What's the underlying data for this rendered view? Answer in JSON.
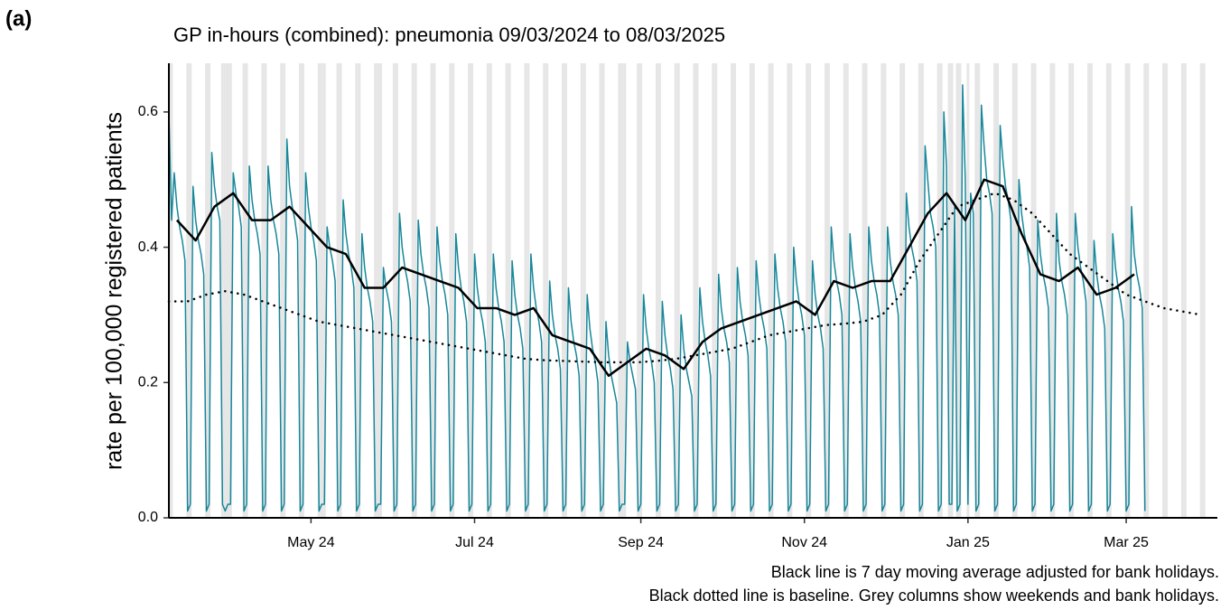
{
  "chart_data": {
    "type": "line",
    "panel_label": "(a)",
    "title": "GP in-hours (combined): pneumonia 09/03/2024 to 08/03/2025",
    "y_label": "rate per 100,000 registered patients",
    "notes": [
      "Black line is 7 day moving average adjusted for bank holidays.",
      "Black dotted line is baseline. Grey columns show weekends and bank holidays."
    ],
    "xlim": [
      0,
      391
    ],
    "ylim": [
      0,
      0.672
    ],
    "xticks": [
      {
        "value": 53,
        "label": "May 24"
      },
      {
        "value": 114,
        "label": "Jul 24"
      },
      {
        "value": 176,
        "label": "Sep 24"
      },
      {
        "value": 237,
        "label": "Nov 24"
      },
      {
        "value": 298,
        "label": "Jan 25"
      },
      {
        "value": 357,
        "label": "Mar 25"
      }
    ],
    "yticks": [
      {
        "value": 0,
        "label": "0.0"
      },
      0.2,
      0.4,
      0.6
    ],
    "shade_color": "#e6e6e6",
    "shaded_days": [
      0,
      1,
      7,
      8,
      14,
      15,
      20,
      21,
      22,
      23,
      28,
      29,
      35,
      36,
      42,
      43,
      49,
      50,
      56,
      57,
      58,
      63,
      64,
      70,
      71,
      77,
      78,
      79,
      84,
      85,
      91,
      92,
      98,
      99,
      105,
      106,
      112,
      113,
      119,
      120,
      126,
      127,
      133,
      134,
      140,
      141,
      147,
      148,
      154,
      155,
      161,
      162,
      168,
      169,
      170,
      175,
      176,
      182,
      183,
      189,
      190,
      196,
      197,
      203,
      204,
      210,
      211,
      217,
      218,
      224,
      225,
      231,
      232,
      238,
      239,
      245,
      246,
      252,
      253,
      259,
      260,
      266,
      267,
      273,
      274,
      280,
      281,
      287,
      288,
      291,
      292,
      294,
      295,
      298,
      301,
      302,
      308,
      309,
      315,
      316,
      322,
      323,
      329,
      330,
      336,
      337,
      343,
      344,
      350,
      351,
      357,
      358,
      364,
      365,
      371,
      372,
      378,
      379,
      385,
      386
    ],
    "x": [
      0,
      1,
      2,
      3,
      4,
      5,
      6,
      7,
      8,
      9,
      10,
      11,
      12,
      13,
      14,
      15,
      16,
      17,
      18,
      19,
      20,
      21,
      22,
      23,
      24,
      25,
      26,
      27,
      28,
      29,
      30,
      31,
      32,
      33,
      34,
      35,
      36,
      37,
      38,
      39,
      40,
      41,
      42,
      43,
      44,
      45,
      46,
      47,
      48,
      49,
      50,
      51,
      52,
      53,
      54,
      55,
      56,
      57,
      58,
      59,
      60,
      61,
      62,
      63,
      64,
      65,
      66,
      67,
      68,
      69,
      70,
      71,
      72,
      73,
      74,
      75,
      76,
      77,
      78,
      79,
      80,
      81,
      82,
      83,
      84,
      85,
      86,
      87,
      88,
      89,
      90,
      91,
      92,
      93,
      94,
      95,
      96,
      97,
      98,
      99,
      100,
      101,
      102,
      103,
      104,
      105,
      106,
      107,
      108,
      109,
      110,
      111,
      112,
      113,
      114,
      115,
      116,
      117,
      118,
      119,
      120,
      121,
      122,
      123,
      124,
      125,
      126,
      127,
      128,
      129,
      130,
      131,
      132,
      133,
      134,
      135,
      136,
      137,
      138,
      139,
      140,
      141,
      142,
      143,
      144,
      145,
      146,
      147,
      148,
      149,
      150,
      151,
      152,
      153,
      154,
      155,
      156,
      157,
      158,
      159,
      160,
      161,
      162,
      163,
      164,
      165,
      166,
      167,
      168,
      169,
      170,
      171,
      172,
      173,
      174,
      175,
      176,
      177,
      178,
      179,
      180,
      181,
      182,
      183,
      184,
      185,
      186,
      187,
      188,
      189,
      190,
      191,
      192,
      193,
      194,
      195,
      196,
      197,
      198,
      199,
      200,
      201,
      202,
      203,
      204,
      205,
      206,
      207,
      208,
      209,
      210,
      211,
      212,
      213,
      214,
      215,
      216,
      217,
      218,
      219,
      220,
      221,
      222,
      223,
      224,
      225,
      226,
      227,
      228,
      229,
      230,
      231,
      232,
      233,
      234,
      235,
      236,
      237,
      238,
      239,
      240,
      241,
      242,
      243,
      244,
      245,
      246,
      247,
      248,
      249,
      250,
      251,
      252,
      253,
      254,
      255,
      256,
      257,
      258,
      259,
      260,
      261,
      262,
      263,
      264,
      265,
      266,
      267,
      268,
      269,
      270,
      271,
      272,
      273,
      274,
      275,
      276,
      277,
      278,
      279,
      280,
      281,
      282,
      283,
      284,
      285,
      286,
      287,
      288,
      289,
      290,
      291,
      292,
      293,
      294,
      295,
      296,
      297,
      298,
      299,
      300,
      301,
      302,
      303,
      304,
      305,
      306,
      307,
      308,
      309,
      310,
      311,
      312,
      313,
      314,
      315,
      316,
      317,
      318,
      319,
      320,
      321,
      322,
      323,
      324,
      325,
      326,
      327,
      328,
      329,
      330,
      331,
      332,
      333,
      334,
      335,
      336,
      337,
      338,
      339,
      340,
      341,
      342,
      343,
      344,
      345,
      346,
      347,
      348,
      349,
      350,
      351,
      352,
      353,
      354,
      355,
      356,
      357,
      358,
      359,
      360,
      361,
      362,
      363,
      364
    ],
    "series": [
      {
        "color": "#17879a",
        "style": "solid",
        "values": [
          0.6,
          0.44,
          0.51,
          0.46,
          0.43,
          0.41,
          0.38,
          0.01,
          0.02,
          0.49,
          0.44,
          0.41,
          0.39,
          0.36,
          0.01,
          0.02,
          0.54,
          0.49,
          0.46,
          0.44,
          0.02,
          0.01,
          0.02,
          0.02,
          0.51,
          0.48,
          0.46,
          0.43,
          0.01,
          0.02,
          0.52,
          0.47,
          0.44,
          0.42,
          0.39,
          0.01,
          0.02,
          0.52,
          0.47,
          0.44,
          0.42,
          0.39,
          0.01,
          0.02,
          0.56,
          0.49,
          0.46,
          0.44,
          0.41,
          0.01,
          0.02,
          0.51,
          0.46,
          0.43,
          0.41,
          0.38,
          0.01,
          0.02,
          0.02,
          0.43,
          0.4,
          0.38,
          0.35,
          0.01,
          0.02,
          0.47,
          0.42,
          0.39,
          0.37,
          0.34,
          0.01,
          0.02,
          0.42,
          0.37,
          0.34,
          0.32,
          0.29,
          0.01,
          0.02,
          0.02,
          0.37,
          0.34,
          0.32,
          0.29,
          0.01,
          0.02,
          0.45,
          0.4,
          0.37,
          0.35,
          0.32,
          0.01,
          0.02,
          0.44,
          0.39,
          0.36,
          0.34,
          0.31,
          0.01,
          0.02,
          0.43,
          0.38,
          0.35,
          0.33,
          0.3,
          0.01,
          0.02,
          0.42,
          0.37,
          0.34,
          0.32,
          0.29,
          0.01,
          0.02,
          0.39,
          0.34,
          0.31,
          0.29,
          0.26,
          0.01,
          0.02,
          0.39,
          0.34,
          0.31,
          0.29,
          0.26,
          0.01,
          0.02,
          0.38,
          0.33,
          0.3,
          0.28,
          0.25,
          0.01,
          0.02,
          0.39,
          0.34,
          0.31,
          0.29,
          0.26,
          0.01,
          0.02,
          0.35,
          0.3,
          0.27,
          0.25,
          0.22,
          0.01,
          0.02,
          0.34,
          0.29,
          0.26,
          0.24,
          0.21,
          0.01,
          0.02,
          0.33,
          0.28,
          0.25,
          0.23,
          0.2,
          0.01,
          0.02,
          0.29,
          0.24,
          0.21,
          0.19,
          0.17,
          0.01,
          0.02,
          0.02,
          0.26,
          0.23,
          0.21,
          0.19,
          0.01,
          0.02,
          0.33,
          0.28,
          0.25,
          0.23,
          0.2,
          0.01,
          0.02,
          0.32,
          0.27,
          0.24,
          0.22,
          0.19,
          0.01,
          0.02,
          0.3,
          0.25,
          0.22,
          0.2,
          0.18,
          0.01,
          0.02,
          0.34,
          0.29,
          0.26,
          0.24,
          0.21,
          0.01,
          0.02,
          0.36,
          0.31,
          0.28,
          0.26,
          0.23,
          0.01,
          0.02,
          0.37,
          0.32,
          0.29,
          0.27,
          0.24,
          0.01,
          0.02,
          0.38,
          0.33,
          0.3,
          0.28,
          0.25,
          0.01,
          0.02,
          0.39,
          0.34,
          0.31,
          0.29,
          0.26,
          0.01,
          0.02,
          0.4,
          0.35,
          0.32,
          0.3,
          0.27,
          0.01,
          0.02,
          0.38,
          0.33,
          0.3,
          0.28,
          0.25,
          0.01,
          0.02,
          0.43,
          0.38,
          0.35,
          0.33,
          0.3,
          0.01,
          0.02,
          0.42,
          0.37,
          0.34,
          0.32,
          0.29,
          0.01,
          0.02,
          0.43,
          0.38,
          0.35,
          0.33,
          0.3,
          0.01,
          0.02,
          0.43,
          0.38,
          0.35,
          0.33,
          0.3,
          0.01,
          0.02,
          0.48,
          0.43,
          0.4,
          0.38,
          0.35,
          0.01,
          0.02,
          0.55,
          0.5,
          0.45,
          0.43,
          0.4,
          0.01,
          0.02,
          0.6,
          0.52,
          0.02,
          0.02,
          0.46,
          0.01,
          0.02,
          0.64,
          0.5,
          0.02,
          0.48,
          0.45,
          0.01,
          0.02,
          0.61,
          0.55,
          0.5,
          0.48,
          0.45,
          0.01,
          0.02,
          0.58,
          0.53,
          0.49,
          0.47,
          0.44,
          0.01,
          0.02,
          0.5,
          0.45,
          0.42,
          0.4,
          0.37,
          0.01,
          0.02,
          0.44,
          0.39,
          0.36,
          0.34,
          0.31,
          0.01,
          0.02,
          0.45,
          0.38,
          0.35,
          0.33,
          0.3,
          0.01,
          0.02,
          0.45,
          0.4,
          0.37,
          0.35,
          0.32,
          0.01,
          0.02,
          0.41,
          0.36,
          0.33,
          0.31,
          0.28,
          0.01,
          0.02,
          0.42,
          0.37,
          0.34,
          0.32,
          0.29,
          0.01,
          0.02,
          0.46,
          0.39,
          0.36,
          0.34,
          0.31,
          0.01
        ]
      },
      {
        "color": "#000000",
        "style": "solid",
        "x": [
          3,
          10,
          17,
          24,
          31,
          38,
          45,
          52,
          59,
          66,
          73,
          80,
          87,
          94,
          101,
          108,
          115,
          122,
          129,
          136,
          143,
          150,
          157,
          164,
          171,
          178,
          185,
          192,
          199,
          206,
          213,
          220,
          227,
          234,
          241,
          248,
          255,
          262,
          269,
          276,
          283,
          290,
          297,
          304,
          311,
          318,
          325,
          332,
          339,
          346,
          353,
          360
        ],
        "values": [
          0.44,
          0.41,
          0.46,
          0.48,
          0.44,
          0.44,
          0.46,
          0.43,
          0.4,
          0.39,
          0.34,
          0.34,
          0.37,
          0.36,
          0.35,
          0.34,
          0.31,
          0.31,
          0.3,
          0.31,
          0.27,
          0.26,
          0.25,
          0.21,
          0.23,
          0.25,
          0.24,
          0.22,
          0.26,
          0.28,
          0.29,
          0.3,
          0.31,
          0.32,
          0.3,
          0.35,
          0.34,
          0.35,
          0.35,
          0.4,
          0.45,
          0.48,
          0.44,
          0.5,
          0.49,
          0.42,
          0.36,
          0.35,
          0.37,
          0.33,
          0.34,
          0.36
        ]
      },
      {
        "color": "#000000",
        "style": "dotted",
        "x": [
          0,
          7,
          14,
          21,
          28,
          35,
          42,
          49,
          56,
          63,
          70,
          77,
          84,
          91,
          98,
          105,
          112,
          119,
          126,
          133,
          140,
          147,
          154,
          161,
          168,
          175,
          182,
          189,
          196,
          203,
          210,
          217,
          224,
          231,
          238,
          245,
          252,
          259,
          266,
          273,
          280,
          287,
          294,
          301,
          308,
          315,
          322,
          329,
          336,
          343,
          350,
          357,
          364,
          371,
          378,
          385
        ],
        "values": [
          0.32,
          0.32,
          0.33,
          0.335,
          0.33,
          0.32,
          0.31,
          0.3,
          0.29,
          0.285,
          0.28,
          0.275,
          0.27,
          0.265,
          0.26,
          0.255,
          0.25,
          0.245,
          0.24,
          0.235,
          0.233,
          0.232,
          0.231,
          0.23,
          0.23,
          0.23,
          0.232,
          0.235,
          0.24,
          0.245,
          0.25,
          0.26,
          0.27,
          0.275,
          0.28,
          0.285,
          0.287,
          0.29,
          0.3,
          0.33,
          0.38,
          0.42,
          0.46,
          0.47,
          0.48,
          0.47,
          0.45,
          0.42,
          0.39,
          0.37,
          0.35,
          0.33,
          0.32,
          0.31,
          0.305,
          0.3
        ]
      }
    ]
  }
}
